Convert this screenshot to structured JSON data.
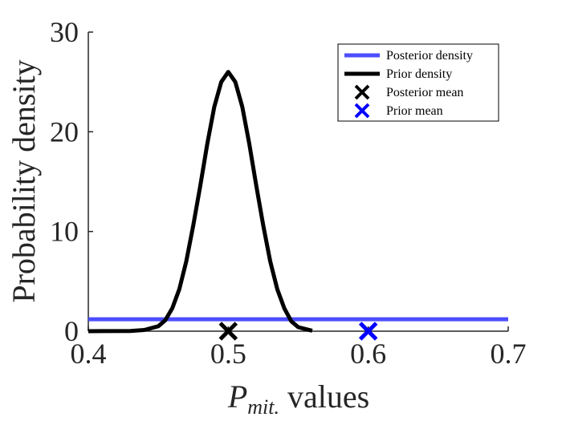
{
  "chart_data": {
    "type": "line",
    "xlabel": {
      "main": "P",
      "sub": "mit.",
      "suffix": " values"
    },
    "ylabel": "Probability density",
    "xlim": [
      0.4,
      0.7
    ],
    "ylim": [
      0,
      30
    ],
    "xticks": [
      "0.4",
      "0.5",
      "0.6",
      "0.7"
    ],
    "yticks": [
      "0",
      "10",
      "20",
      "30"
    ],
    "grid": false,
    "legend_position": "top-right",
    "series": [
      {
        "name": "Posterior density",
        "kind": "line",
        "color": "#4d4dff",
        "x": [
          0.4,
          0.7
        ],
        "y": [
          1.2,
          1.2
        ]
      },
      {
        "name": "Prior density",
        "kind": "line",
        "color": "#000000",
        "x": [
          0.4,
          0.43,
          0.44,
          0.45,
          0.455,
          0.46,
          0.465,
          0.47,
          0.475,
          0.48,
          0.485,
          0.49,
          0.495,
          0.5,
          0.505,
          0.51,
          0.515,
          0.52,
          0.525,
          0.53,
          0.535,
          0.54,
          0.545,
          0.55,
          0.56
        ],
        "y": [
          0.0,
          0.02,
          0.12,
          0.5,
          1.1,
          2.3,
          4.2,
          7.0,
          10.6,
          14.6,
          18.8,
          22.5,
          25.0,
          26.0,
          25.0,
          22.5,
          18.8,
          14.6,
          10.6,
          7.0,
          4.2,
          2.3,
          1.0,
          0.4,
          0.05
        ]
      },
      {
        "name": "Posterior mean",
        "kind": "marker",
        "marker": "x",
        "color": "#000000",
        "x": [
          0.5
        ],
        "y": [
          0
        ]
      },
      {
        "name": "Prior mean",
        "kind": "marker",
        "marker": "x",
        "color": "#0000ff",
        "x": [
          0.6
        ],
        "y": [
          0
        ]
      }
    ]
  }
}
